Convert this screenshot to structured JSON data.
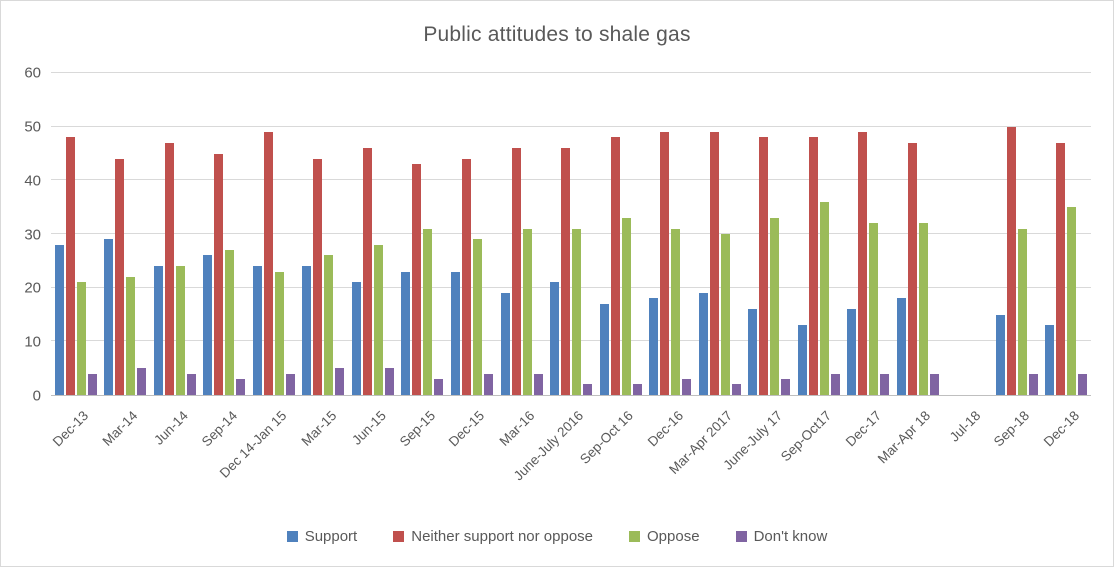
{
  "palette": {
    "background": "#FFFFFF",
    "border": "#D9D9D9",
    "text": "#595959",
    "gridline": "#D9D9D9",
    "axis_line": "#BFBFBF"
  },
  "chart_data": {
    "type": "bar",
    "title": "Public attitudes to shale gas",
    "xlabel": "",
    "ylabel": "",
    "ylim": [
      0,
      60
    ],
    "yticks": [
      0,
      10,
      20,
      30,
      40,
      50,
      60
    ],
    "grid": true,
    "legend_position": "bottom",
    "categories": [
      "Dec-13",
      "Mar-14",
      "Jun-14",
      "Sep-14",
      "Dec 14-Jan 15",
      "Mar-15",
      "Jun-15",
      "Sep-15",
      "Dec-15",
      "Mar-16",
      "June-July 2016",
      "Sep-Oct 16",
      "Dec-16",
      "Mar-Apr 2017",
      "June-July 17",
      "Sep-Oct17",
      "Dec-17",
      "Mar-Apr 18",
      "Jul-18",
      "Sep-18",
      "Dec-18"
    ],
    "series": [
      {
        "name": "Support",
        "color": "#4F81BD",
        "values": [
          28,
          29,
          24,
          26,
          24,
          24,
          21,
          23,
          23,
          19,
          21,
          17,
          18,
          19,
          16,
          13,
          16,
          18,
          null,
          15,
          13
        ]
      },
      {
        "name": "Neither support nor oppose",
        "color": "#C0504D",
        "values": [
          48,
          44,
          47,
          45,
          49,
          44,
          46,
          43,
          44,
          46,
          46,
          48,
          49,
          49,
          48,
          48,
          49,
          47,
          null,
          50,
          47
        ]
      },
      {
        "name": "Oppose",
        "color": "#9BBB59",
        "values": [
          21,
          22,
          24,
          27,
          23,
          26,
          28,
          31,
          29,
          31,
          31,
          33,
          31,
          30,
          33,
          36,
          32,
          32,
          null,
          31,
          35
        ]
      },
      {
        "name": "Don't know",
        "color": "#8064A2",
        "values": [
          4,
          5,
          4,
          3,
          4,
          5,
          5,
          3,
          4,
          4,
          2,
          2,
          3,
          2,
          3,
          4,
          4,
          4,
          null,
          4,
          4
        ]
      }
    ]
  }
}
